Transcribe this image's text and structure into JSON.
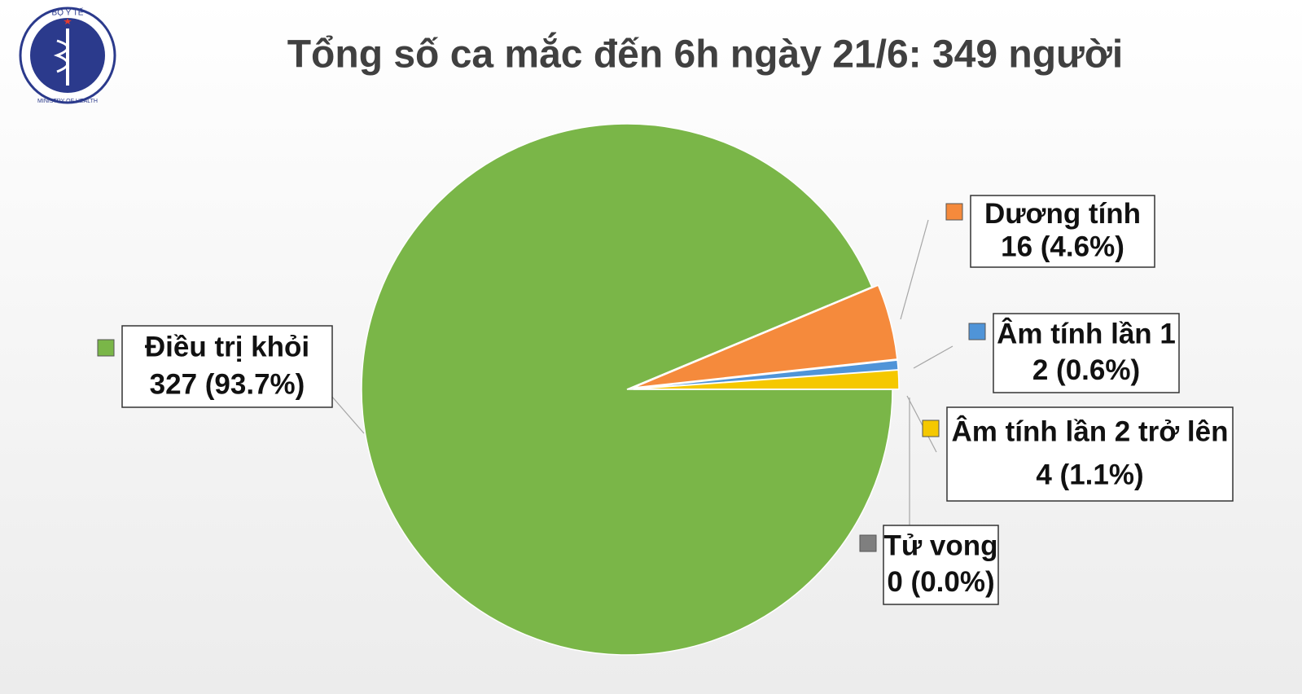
{
  "logo": {
    "top": "BỘ Y TẾ",
    "bottom": "MINISTRY OF HEALTH"
  },
  "chart_data": {
    "type": "pie",
    "title": "Tổng số ca mắc đến 6h ngày 21/6: 349 người",
    "categories": [
      "Điều trị khỏi",
      "Dương tính",
      "Âm tính lần 1",
      "Âm tính lần 2 trở lên",
      "Tử vong"
    ],
    "values": [
      327,
      16,
      2,
      4,
      0
    ],
    "value_labels": [
      "327 (93.7%)",
      "16 (4.6%)",
      "2 (0.6%)",
      "4 (1.1%)",
      "0 (0.0%)"
    ],
    "colors": [
      "#7ab648",
      "#f58a3c",
      "#4f94d8",
      "#f5c800",
      "#7f7f7f"
    ]
  }
}
